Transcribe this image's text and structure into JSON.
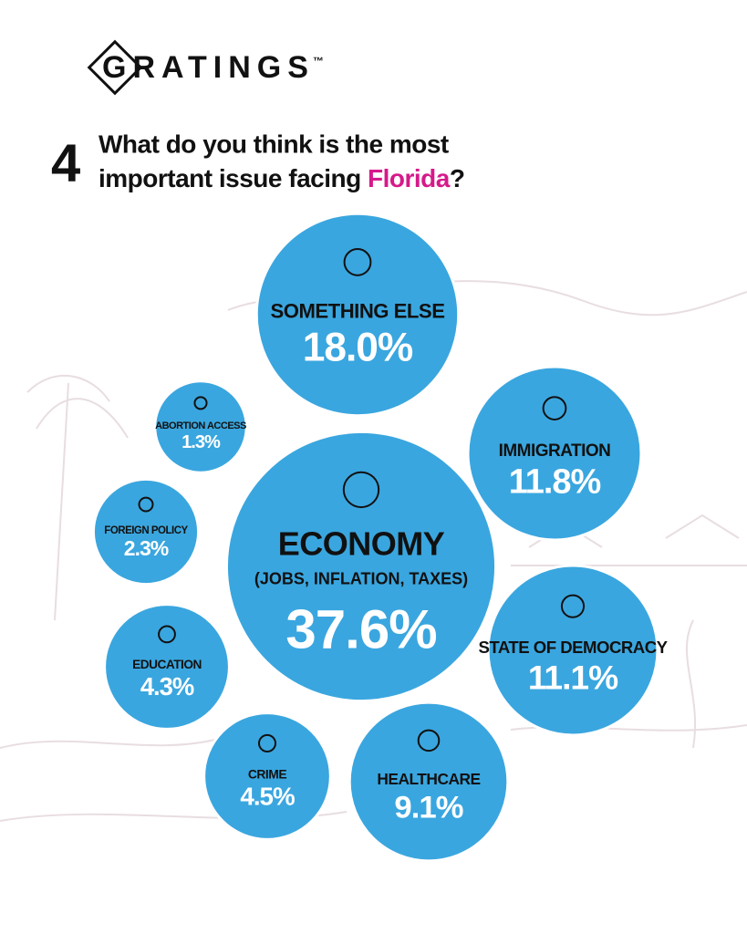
{
  "logo": "GRATINGS",
  "logo_mark": "™",
  "chart_data": {
    "type": "bubble",
    "question_number": "4",
    "title_prefix": "What do you think is the most",
    "title_line2": "important issue facing",
    "title_highlight": "Florida",
    "title_suffix": "?",
    "categories": [
      "SOMETHING ELSE",
      "ABORTION ACCESS",
      "IMMIGRATION",
      "FOREIGN POLICY",
      "ECONOMY",
      "STATE OF DEMOCRACY",
      "EDUCATION",
      "CRIME",
      "HEALTHCARE"
    ],
    "category_note": "(JOBS, INFLATION, TAXES)",
    "values": [
      18.0,
      1.3,
      11.8,
      2.3,
      37.6,
      11.1,
      4.3,
      4.5,
      9.1
    ],
    "value_labels": [
      "18.0%",
      "1.3%",
      "11.8%",
      "2.3%",
      "37.6%",
      "11.1%",
      "4.3%",
      "4.5%",
      "9.1%"
    ],
    "color": "#3aa6df",
    "highlight_color": "#d6198a"
  }
}
